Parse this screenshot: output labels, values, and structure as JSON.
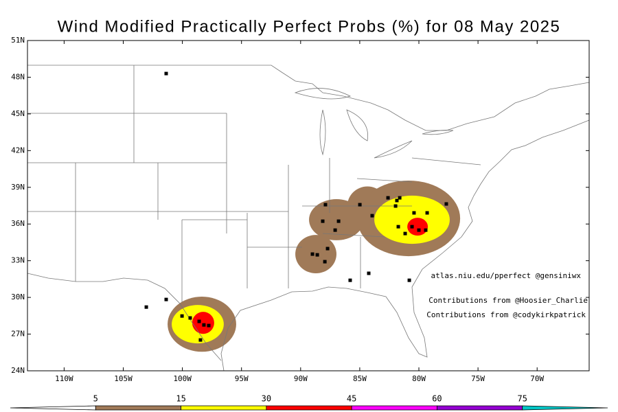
{
  "title": "Wind Modified Practically Perfect Probs (%) for 08 May 2025",
  "lon_range": [
    -113.1,
    -65.6
  ],
  "lat_range": [
    24,
    51
  ],
  "lat_ticks": [
    {
      "value": 51,
      "label": "51N"
    },
    {
      "value": 48,
      "label": "48N"
    },
    {
      "value": 45,
      "label": "45N"
    },
    {
      "value": 42,
      "label": "42N"
    },
    {
      "value": 39,
      "label": "39N"
    },
    {
      "value": 36,
      "label": "36N"
    },
    {
      "value": 33,
      "label": "33N"
    },
    {
      "value": 30,
      "label": "30N"
    },
    {
      "value": 27,
      "label": "27N"
    },
    {
      "value": 24,
      "label": "24N"
    }
  ],
  "lon_ticks": [
    {
      "value": -110,
      "label": "110W"
    },
    {
      "value": -105,
      "label": "105W"
    },
    {
      "value": -100,
      "label": "100W"
    },
    {
      "value": -95,
      "label": "95W"
    },
    {
      "value": -90,
      "label": "90W"
    },
    {
      "value": -85,
      "label": "85W"
    },
    {
      "value": -80,
      "label": "80W"
    },
    {
      "value": -75,
      "label": "75W"
    },
    {
      "value": -70,
      "label": "70W"
    }
  ],
  "credits": [
    "atlas.niu.edu/pperfect @gensiniwx",
    "Contributions from @Hoosier_Charlie",
    "Contributions from @codykirkpatrick"
  ],
  "colorbar": {
    "levels": [
      5,
      15,
      30,
      45,
      60,
      75
    ],
    "colors": [
      "#ffffff",
      "#a07a58",
      "#ffff00",
      "#ff0000",
      "#ff00ff",
      "#9400d3",
      "#00c5c5"
    ]
  },
  "contours": [
    {
      "level": 5,
      "lon": -98.35,
      "lat": 27.81,
      "rx": 2.9,
      "ry": 2.25
    },
    {
      "level": 5,
      "lon": -88.71,
      "lat": 33.54,
      "rx": 1.74,
      "ry": 1.57
    },
    {
      "level": 5,
      "lon": -86.97,
      "lat": 36.35,
      "rx": 2.32,
      "ry": 1.68
    },
    {
      "level": 5,
      "lon": -84.35,
      "lat": 37.47,
      "rx": 1.7,
      "ry": 1.6
    },
    {
      "level": 5,
      "lon": -80.87,
      "lat": 36.46,
      "rx": 4.36,
      "ry": 3.09
    },
    {
      "level": 15,
      "lon": -98.7,
      "lat": 27.81,
      "rx": 2.2,
      "ry": 1.57
    },
    {
      "level": 15,
      "lon": -80.58,
      "lat": 36.35,
      "rx": 3.19,
      "ry": 1.97
    },
    {
      "level": 30,
      "lon": -98.24,
      "lat": 27.92,
      "rx": 0.93,
      "ry": 0.9
    },
    {
      "level": 30,
      "lon": -80.11,
      "lat": 35.78,
      "rx": 0.87,
      "ry": 0.73
    }
  ],
  "reports": {
    "lon": [
      -101.37,
      -103.05,
      -101.37,
      -100.03,
      -99.34,
      -98.58,
      -98.18,
      -97.77,
      -98.47,
      -87.9,
      -88.13,
      -86.79,
      -87.08,
      -87.72,
      -89.0,
      -88.59,
      -87.95,
      -84.99,
      -83.95,
      -82.61,
      -81.86,
      -81.62,
      -81.97,
      -81.74,
      -81.16,
      -80.41,
      -80.58,
      -80.0,
      -79.42,
      -79.3,
      -77.68,
      -84.24,
      -85.81,
      -80.81
    ],
    "lat": [
      48.3,
      29.21,
      29.83,
      28.48,
      28.32,
      28.04,
      27.75,
      27.7,
      26.52,
      37.58,
      36.23,
      36.23,
      35.5,
      33.99,
      33.54,
      33.48,
      32.92,
      37.58,
      36.68,
      38.14,
      37.92,
      38.14,
      37.47,
      35.78,
      35.22,
      36.91,
      35.78,
      35.5,
      35.5,
      36.91,
      37.64,
      31.97,
      31.4,
      31.4
    ]
  }
}
